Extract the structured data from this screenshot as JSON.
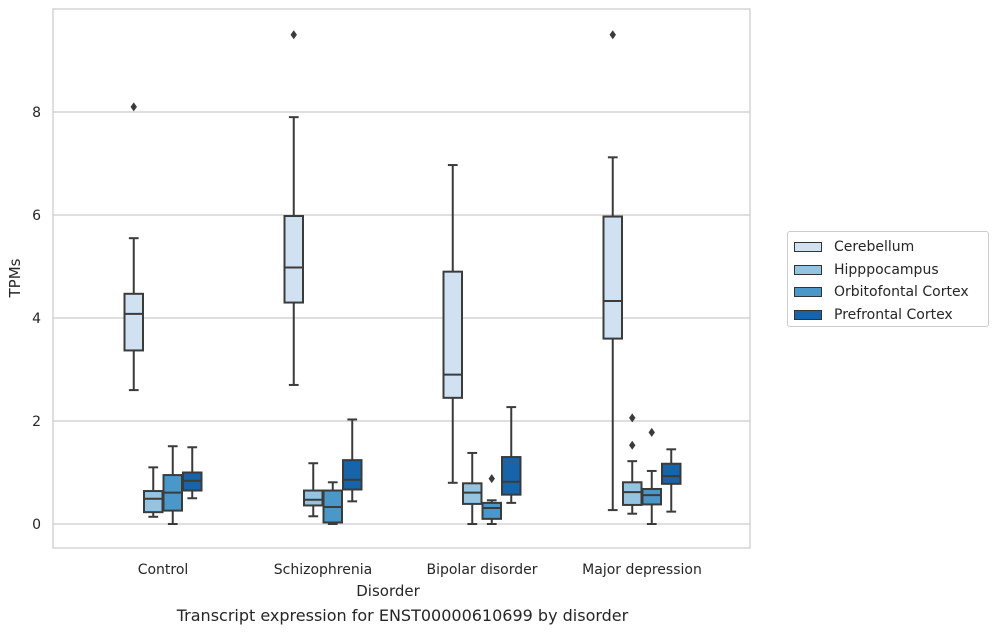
{
  "chart_data": {
    "type": "boxplot",
    "xlabel": "Disorder",
    "ylabel": "TPMs",
    "caption": "Transcript expression for ENST00000610699 by disorder",
    "ylim": [
      -0.45,
      9.95
    ],
    "yticks": [
      0,
      2,
      4,
      6,
      8
    ],
    "grid": true,
    "legend_position": "right",
    "categories": [
      "Control",
      "Schizophrenia",
      "Bipolar disorder",
      "Major depression"
    ],
    "series": [
      {
        "name": "Cerebellum",
        "color": "#d0e1f2",
        "boxes": [
          {
            "whislo": 2.6,
            "q1": 3.37,
            "med": 4.08,
            "q3": 4.47,
            "whishi": 5.55,
            "fliers": [
              8.1
            ]
          },
          {
            "whislo": 2.7,
            "q1": 4.3,
            "med": 4.98,
            "q3": 5.98,
            "whishi": 7.9,
            "fliers": [
              9.5
            ]
          },
          {
            "whislo": 0.8,
            "q1": 2.45,
            "med": 2.9,
            "q3": 4.9,
            "whishi": 6.97,
            "fliers": []
          },
          {
            "whislo": 0.27,
            "q1": 3.6,
            "med": 4.33,
            "q3": 5.97,
            "whishi": 7.12,
            "fliers": [
              9.5
            ]
          }
        ]
      },
      {
        "name": "Hipppocampus",
        "color": "#94c4df",
        "boxes": [
          {
            "whislo": 0.14,
            "q1": 0.23,
            "med": 0.49,
            "q3": 0.64,
            "whishi": 1.1,
            "fliers": []
          },
          {
            "whislo": 0.15,
            "q1": 0.36,
            "med": 0.47,
            "q3": 0.65,
            "whishi": 1.18,
            "fliers": []
          },
          {
            "whislo": 0.0,
            "q1": 0.39,
            "med": 0.61,
            "q3": 0.79,
            "whishi": 1.38,
            "fliers": []
          },
          {
            "whislo": 0.2,
            "q1": 0.37,
            "med": 0.62,
            "q3": 0.81,
            "whishi": 1.22,
            "fliers": [
              1.53,
              2.06
            ]
          }
        ]
      },
      {
        "name": "Orbitofontal Cortex",
        "color": "#4a98c9",
        "boxes": [
          {
            "whislo": 0.0,
            "q1": 0.26,
            "med": 0.61,
            "q3": 0.95,
            "whishi": 1.51,
            "fliers": []
          },
          {
            "whislo": 0.0,
            "q1": 0.03,
            "med": 0.33,
            "q3": 0.65,
            "whishi": 0.81,
            "fliers": []
          },
          {
            "whislo": 0.0,
            "q1": 0.1,
            "med": 0.31,
            "q3": 0.41,
            "whishi": 0.46,
            "fliers": [
              0.88
            ]
          },
          {
            "whislo": 0.0,
            "q1": 0.38,
            "med": 0.56,
            "q3": 0.68,
            "whishi": 1.03,
            "fliers": [
              1.78
            ]
          }
        ]
      },
      {
        "name": "Prefrontal Cortex",
        "color": "#1764ab",
        "boxes": [
          {
            "whislo": 0.5,
            "q1": 0.65,
            "med": 0.84,
            "q3": 1.0,
            "whishi": 1.49,
            "fliers": []
          },
          {
            "whislo": 0.44,
            "q1": 0.67,
            "med": 0.86,
            "q3": 1.24,
            "whishi": 2.03,
            "fliers": []
          },
          {
            "whislo": 0.41,
            "q1": 0.57,
            "med": 0.82,
            "q3": 1.3,
            "whishi": 2.27,
            "fliers": []
          },
          {
            "whislo": 0.24,
            "q1": 0.78,
            "med": 0.93,
            "q3": 1.17,
            "whishi": 1.45,
            "fliers": []
          }
        ]
      }
    ]
  }
}
